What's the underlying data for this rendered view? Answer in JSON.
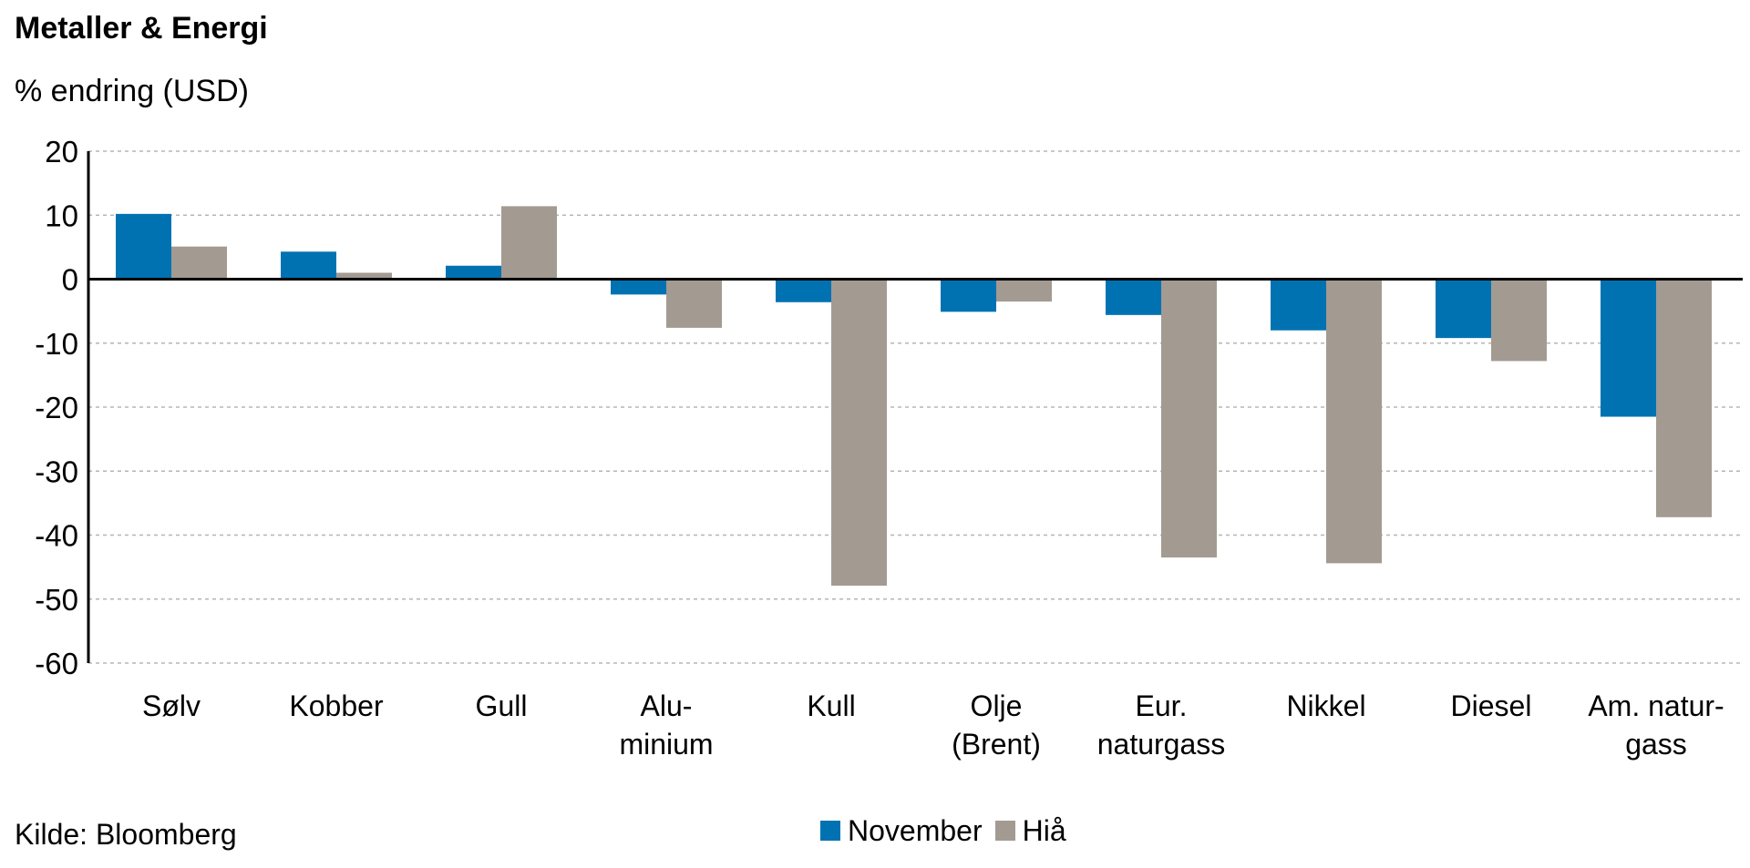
{
  "title": "Metaller & Energi",
  "subtitle": "% endring (USD)",
  "source": "Kilde: Bloomberg",
  "colors": {
    "November": "#0072b2",
    "Hiå": "#a39a92",
    "grid": "#b5b5b5",
    "axis": "#000000"
  },
  "chart_data": {
    "type": "bar",
    "title": "Metaller & Energi",
    "ylabel": "% endring (USD)",
    "xlabel": "",
    "ylim": [
      -60,
      20
    ],
    "yticks": [
      20,
      10,
      0,
      -10,
      -20,
      -30,
      -40,
      -50,
      -60
    ],
    "grid": true,
    "legend_position": "bottom",
    "categories": [
      [
        "Sølv"
      ],
      [
        "Kobber"
      ],
      [
        "Gull"
      ],
      [
        "Alu-",
        "minium"
      ],
      [
        "Kull"
      ],
      [
        "Olje",
        "(Brent)"
      ],
      [
        "Eur.",
        "naturgass"
      ],
      [
        "Nikkel"
      ],
      [
        "Diesel"
      ],
      [
        "Am. natur-",
        "gass"
      ]
    ],
    "series": [
      {
        "name": "November",
        "color": "#0072b2",
        "values": [
          10.2,
          4.3,
          2.1,
          -2.4,
          -3.6,
          -5.1,
          -5.6,
          -8.0,
          -9.2,
          -21.5
        ]
      },
      {
        "name": "Hiå",
        "color": "#a39a92",
        "values": [
          5.1,
          1.0,
          11.4,
          -7.6,
          -47.9,
          -3.5,
          -43.5,
          -44.4,
          -12.8,
          -37.2
        ]
      }
    ]
  }
}
